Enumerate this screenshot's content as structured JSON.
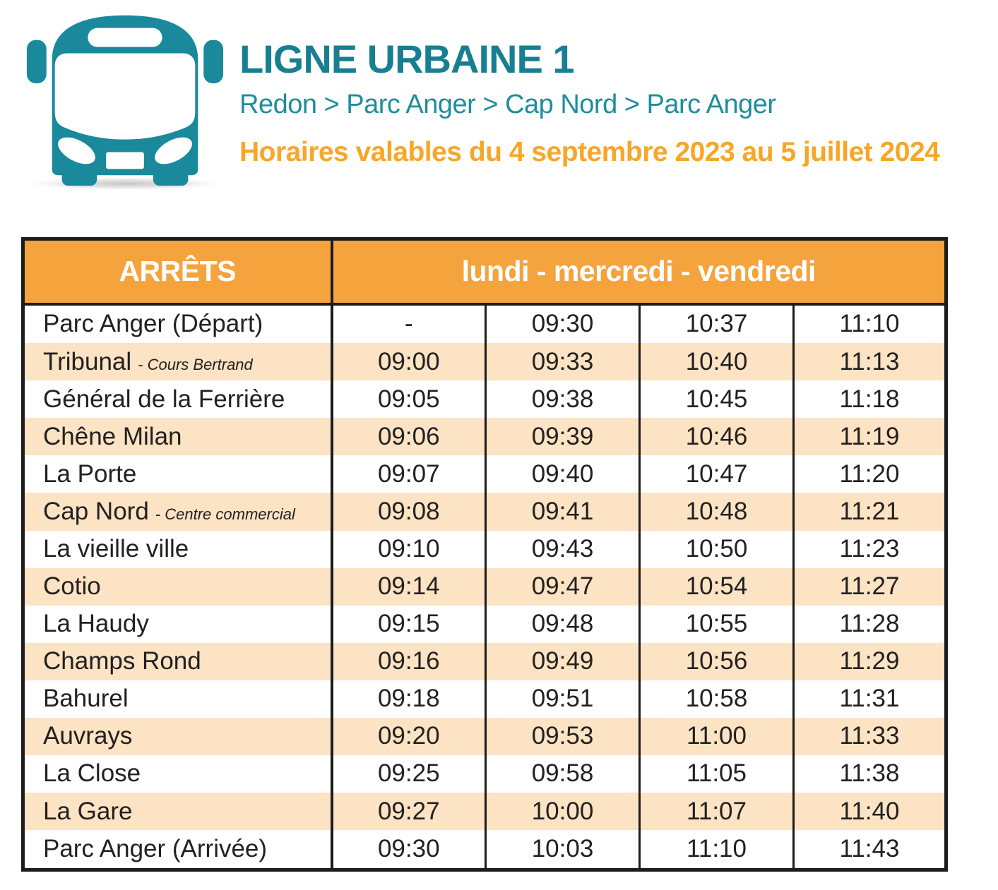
{
  "header": {
    "line_title": "LIGNE URBAINE 1",
    "route": "Redon > Parc Anger > Cap Nord > Parc Anger",
    "validity": "Horaires valables du 4 septembre 2023 au 5 juillet 2024"
  },
  "icons": {
    "bus": "front-view-city-bus"
  },
  "colors": {
    "teal_title": "#177f91",
    "teal_route": "#1e8d9c",
    "teal_bus": "#19899b",
    "orange_header": "#f5a33c",
    "orange_validity": "#f8a627",
    "peach_stripe": "#fbe3c4",
    "table_border": "#1c1c1c",
    "cell_text": "#232020"
  },
  "table": {
    "stops_header": "ARRÊTS",
    "days_header": "lundi - mercredi - vendredi",
    "rows": [
      {
        "stop": "Parc Anger (Départ)",
        "sublabel": "",
        "times": [
          "-",
          "09:30",
          "10:37",
          "11:10"
        ]
      },
      {
        "stop": "Tribunal",
        "sublabel": "- Cours Bertrand",
        "times": [
          "09:00",
          "09:33",
          "10:40",
          "11:13"
        ]
      },
      {
        "stop": "Général de la Ferrière",
        "sublabel": "",
        "times": [
          "09:05",
          "09:38",
          "10:45",
          "11:18"
        ]
      },
      {
        "stop": "Chêne Milan",
        "sublabel": "",
        "times": [
          "09:06",
          "09:39",
          "10:46",
          "11:19"
        ]
      },
      {
        "stop": "La Porte",
        "sublabel": "",
        "times": [
          "09:07",
          "09:40",
          "10:47",
          "11:20"
        ]
      },
      {
        "stop": "Cap Nord",
        "sublabel": "- Centre commercial",
        "times": [
          "09:08",
          "09:41",
          "10:48",
          "11:21"
        ]
      },
      {
        "stop": "La vieille ville",
        "sublabel": "",
        "times": [
          "09:10",
          "09:43",
          "10:50",
          "11:23"
        ]
      },
      {
        "stop": "Cotio",
        "sublabel": "",
        "times": [
          "09:14",
          "09:47",
          "10:54",
          "11:27"
        ]
      },
      {
        "stop": "La Haudy",
        "sublabel": "",
        "times": [
          "09:15",
          "09:48",
          "10:55",
          "11:28"
        ]
      },
      {
        "stop": "Champs Rond",
        "sublabel": "",
        "times": [
          "09:16",
          "09:49",
          "10:56",
          "11:29"
        ]
      },
      {
        "stop": "Bahurel",
        "sublabel": "",
        "times": [
          "09:18",
          "09:51",
          "10:58",
          "11:31"
        ]
      },
      {
        "stop": "Auvrays",
        "sublabel": "",
        "times": [
          "09:20",
          "09:53",
          "11:00",
          "11:33"
        ]
      },
      {
        "stop": "La Close",
        "sublabel": "",
        "times": [
          "09:25",
          "09:58",
          "11:05",
          "11:38"
        ]
      },
      {
        "stop": "La Gare",
        "sublabel": "",
        "times": [
          "09:27",
          "10:00",
          "11:07",
          "11:40"
        ]
      },
      {
        "stop": "Parc Anger (Arrivée)",
        "sublabel": "",
        "times": [
          "09:30",
          "10:03",
          "11:10",
          "11:43"
        ]
      }
    ]
  }
}
